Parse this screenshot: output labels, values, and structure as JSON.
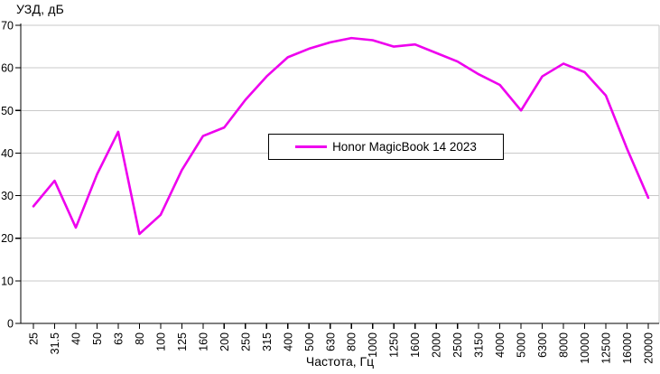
{
  "chart_data": {
    "type": "line",
    "title": "УЗД, дБ",
    "xlabel": "Частота, Гц",
    "ylabel": "УЗД, дБ",
    "categories": [
      "25",
      "31.5",
      "40",
      "50",
      "63",
      "80",
      "100",
      "125",
      "160",
      "200",
      "250",
      "315",
      "400",
      "500",
      "630",
      "800",
      "1000",
      "1250",
      "1600",
      "2000",
      "2500",
      "3150",
      "4000",
      "5000",
      "6300",
      "8000",
      "10000",
      "12500",
      "16000",
      "20000"
    ],
    "series": [
      {
        "name": "Honor MagicBook 14 2023",
        "color": "#EE00EE",
        "values": [
          27.5,
          33.5,
          22.5,
          35,
          45,
          21,
          25.5,
          36,
          44,
          46,
          52.5,
          58,
          62.5,
          64.5,
          66,
          67,
          66.5,
          65,
          65.5,
          63.5,
          61.5,
          58.5,
          56,
          50,
          58,
          61,
          59,
          53.5,
          41,
          29.5
        ]
      }
    ],
    "ylim": [
      0,
      70
    ],
    "ytick_step": 10,
    "grid": true,
    "x_tick_label_rotation": -90,
    "legend_position": "center",
    "axis_color": "#000000",
    "gridline_color": "#C9C9C9",
    "background_color": "#FFFFFF"
  }
}
